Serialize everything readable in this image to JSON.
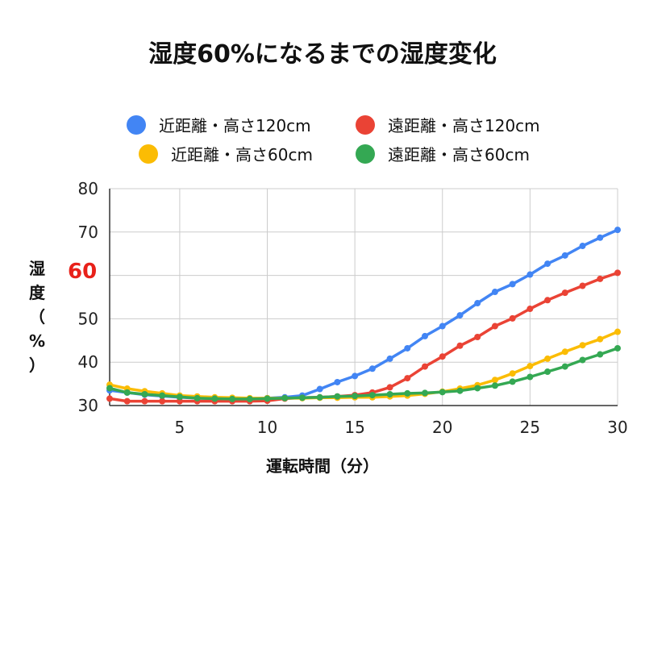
{
  "chart_data": {
    "type": "line",
    "title": "湿度60%になるまでの湿度変化",
    "xlabel": "運転時間（分）",
    "ylabel_chars": [
      "湿",
      "度",
      "（",
      "%",
      "）"
    ],
    "y_highlight": "60",
    "xlim": [
      1,
      30
    ],
    "ylim": [
      30,
      80
    ],
    "x_ticks": [
      "5",
      "10",
      "15",
      "20",
      "25",
      "30"
    ],
    "y_ticks": [
      "30",
      "40",
      "50",
      "70",
      "80"
    ],
    "grid": true,
    "legend_position": "top",
    "x": [
      1,
      2,
      3,
      4,
      5,
      6,
      7,
      8,
      9,
      10,
      11,
      12,
      13,
      14,
      15,
      16,
      17,
      18,
      19,
      20,
      21,
      22,
      23,
      24,
      25,
      26,
      27,
      28,
      29,
      30
    ],
    "series": [
      {
        "name": "近距離・高さ120cm",
        "color": "#4285f4",
        "values": [
          33.5,
          33,
          32.5,
          32.2,
          31.9,
          31.7,
          31.6,
          31.6,
          31.6,
          31.7,
          31.9,
          32.3,
          33.8,
          35.4,
          36.8,
          38.5,
          40.8,
          43.2,
          46,
          48.3,
          50.8,
          53.6,
          56.2,
          58,
          60.2,
          62.7,
          64.6,
          66.8,
          68.7,
          70.5
        ]
      },
      {
        "name": "遠距離・高さ120cm",
        "color": "#ea4335",
        "values": [
          31.6,
          31,
          31,
          31,
          31,
          31,
          31,
          31,
          31,
          31.1,
          31.6,
          31.8,
          31.9,
          32.1,
          32.4,
          33,
          34.2,
          36.3,
          39,
          41.3,
          43.8,
          45.8,
          48.3,
          50.1,
          52.3,
          54.3,
          56,
          57.6,
          59.2,
          60.6
        ]
      },
      {
        "name": "近距離・高さ60cm",
        "color": "#fbbc04",
        "values": [
          34.8,
          33.9,
          33.3,
          32.8,
          32.3,
          32.1,
          31.9,
          31.8,
          31.7,
          31.7,
          31.7,
          31.7,
          31.8,
          31.8,
          31.9,
          31.9,
          32.1,
          32.3,
          32.7,
          33.2,
          33.9,
          34.7,
          35.9,
          37.4,
          39.1,
          40.8,
          42.4,
          43.9,
          45.3,
          47
        ]
      },
      {
        "name": "遠距離・高さ60cm",
        "color": "#34a853",
        "values": [
          34,
          33,
          32.6,
          32.3,
          32,
          31.7,
          31.6,
          31.5,
          31.5,
          31.6,
          31.7,
          31.8,
          31.9,
          32.1,
          32.2,
          32.4,
          32.6,
          32.8,
          32.9,
          33.1,
          33.4,
          34,
          34.6,
          35.5,
          36.6,
          37.8,
          39,
          40.5,
          41.8,
          43.2
        ]
      }
    ]
  }
}
